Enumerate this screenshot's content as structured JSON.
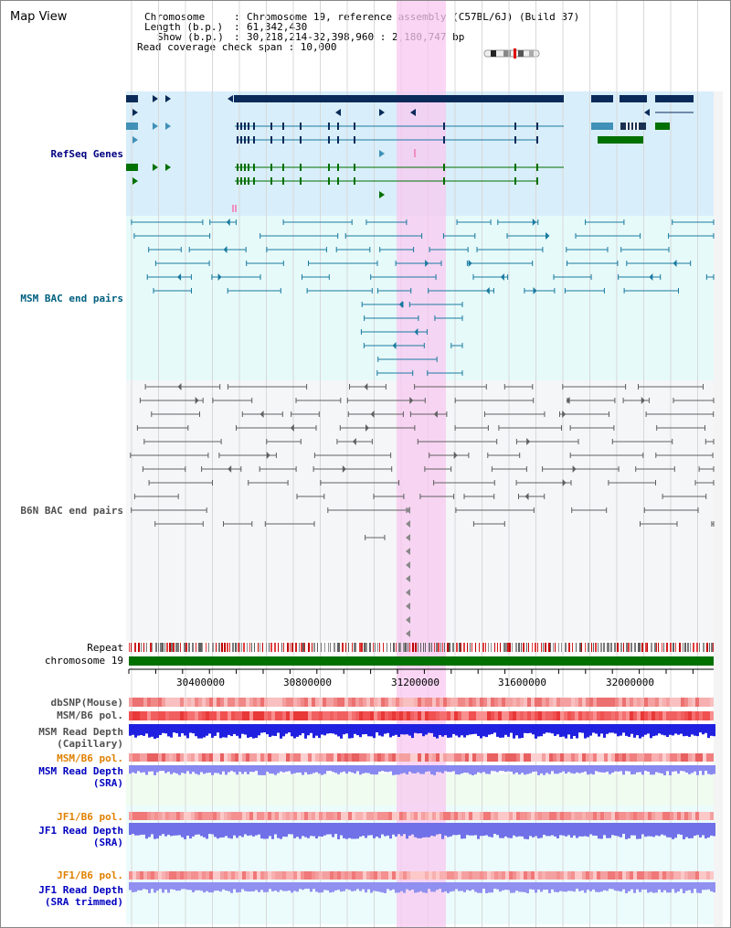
{
  "header": {
    "title": "Map View",
    "info_rows": [
      {
        "key": "Chromosome",
        "value": "Chromosome 19, reference assembly (C57BL/6J) (Build 37)"
      },
      {
        "key": "Length (b.p.)",
        "value": "61,342,430"
      },
      {
        "key": "Show (b.p.)",
        "value": "30,218,214-32,398,960 : 2,180,747 bp"
      }
    ],
    "coverage_span": "Read coverage check span : 10,000"
  },
  "tracks": {
    "refseq": "RefSeq Genes",
    "msm_bac": "MSM BAC end pairs",
    "b6n_bac": "B6N BAC end pairs",
    "repeat": "Repeat",
    "chromosome": "chromosome 19",
    "dbsnp": "dbSNP(Mouse)",
    "msm_b6_pol": "MSM/B6 pol.",
    "msm_read_depth_cap_1": "MSM Read Depth",
    "msm_read_depth_cap_2": "(Capillary)",
    "msm_b6_pol_2": "MSM/B6 pol.",
    "msm_read_depth_sra_1": "MSM Read Depth",
    "msm_read_depth_sra_2": "(SRA)",
    "jf1_b6_pol": "JF1/B6 pol.",
    "jf1_read_depth_1": "JF1 Read Depth",
    "jf1_read_depth_2": "(SRA)",
    "jf1_b6_pol_2": "JF1/B6 pol.",
    "jf1_read_depth_t1": "JF1 Read Depth",
    "jf1_read_depth_t2": "(SRA trimmed)"
  },
  "axis": {
    "ticks": [
      "30400000",
      "30800000",
      "31200000",
      "31600000",
      "32000000"
    ]
  },
  "colors": {
    "refseq_label": "#000080",
    "msm_bac_label": "#006080",
    "b6n_bac_label": "#505050",
    "orange_label": "#e08000",
    "blue_label": "#0000c0",
    "highlight": "#f8c8f0",
    "chromosome_bar": "#007000"
  }
}
